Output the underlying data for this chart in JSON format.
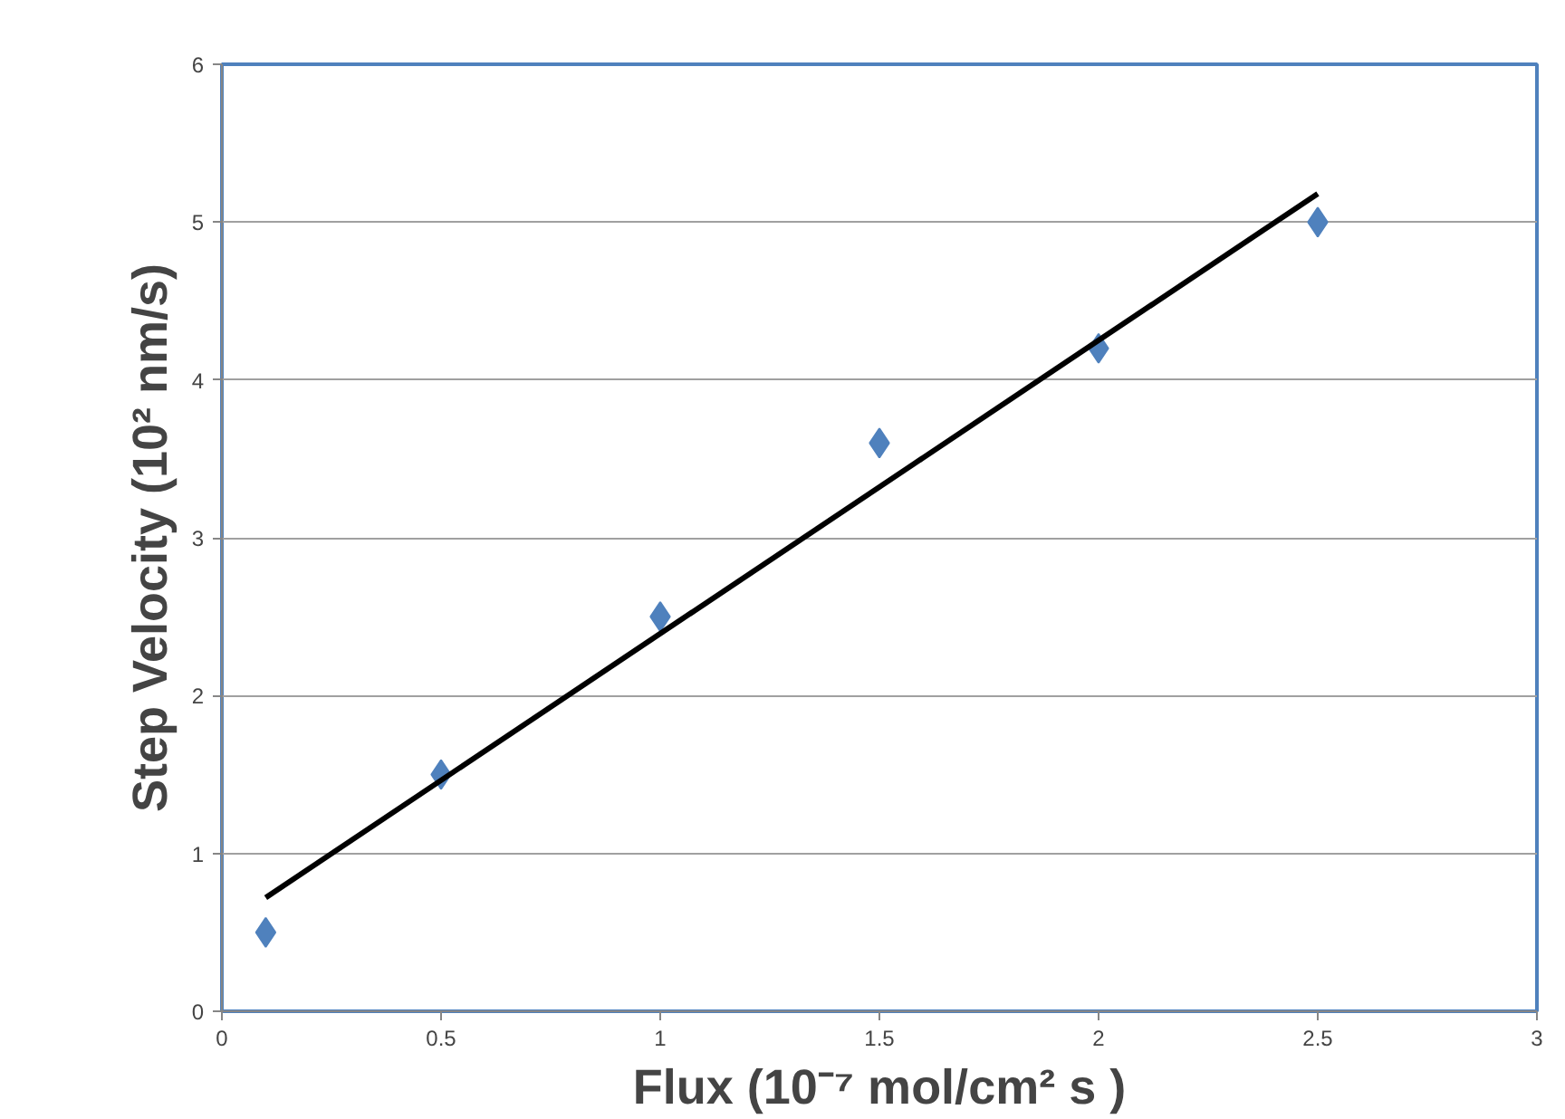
{
  "chart_data": {
    "type": "scatter",
    "xlabel": "Flux (10⁻⁷ mol/cm² s )",
    "ylabel": "Step Velocity (10² nm/s)",
    "xlim": [
      0,
      3
    ],
    "ylim": [
      0,
      6
    ],
    "xticks": [
      0,
      0.5,
      1,
      1.5,
      2,
      2.5,
      3
    ],
    "yticks": [
      0,
      1,
      2,
      3,
      4,
      5,
      6
    ],
    "grid": "y",
    "series": [
      {
        "marker": "diamond",
        "color": "#4f81bd",
        "x": [
          0.1,
          0.5,
          1,
          1.5,
          2,
          2.5
        ],
        "values": [
          0.5,
          1.5,
          2.5,
          3.6,
          4.2,
          5.0
        ]
      },
      {
        "type": "line",
        "color": "#000000",
        "x": [
          0.1,
          2.5
        ],
        "values": [
          0.72,
          5.18
        ]
      }
    ]
  }
}
